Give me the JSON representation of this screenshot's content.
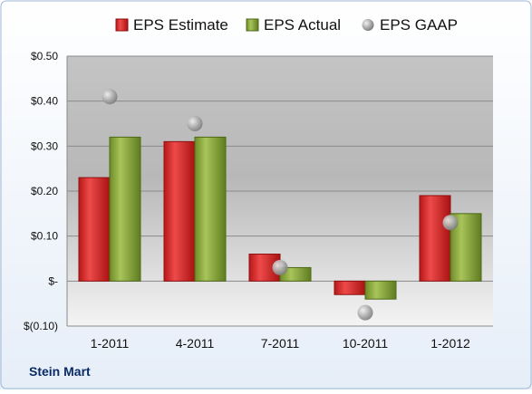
{
  "footer_label": "Stein Mart",
  "chart_data": {
    "type": "bar",
    "categories": [
      "1-2011",
      "4-2011",
      "7-2011",
      "10-2011",
      "1-2012"
    ],
    "series": [
      {
        "name": "EPS Estimate",
        "kind": "bar",
        "values": [
          0.23,
          0.31,
          0.06,
          -0.03,
          0.19
        ],
        "color": "#d42a2a"
      },
      {
        "name": "EPS Actual",
        "kind": "bar",
        "values": [
          0.32,
          0.32,
          0.03,
          -0.04,
          0.15
        ],
        "color": "#86a83a"
      },
      {
        "name": "EPS GAAP",
        "kind": "marker",
        "values": [
          0.41,
          0.35,
          0.03,
          -0.07,
          0.13
        ],
        "color": "#a0a0a0"
      }
    ],
    "ylim": [
      -0.1,
      0.5
    ],
    "yticks": [
      0.5,
      0.4,
      0.3,
      0.2,
      0.1,
      0.0,
      -0.1
    ],
    "ytick_labels": [
      "$0.50",
      "$0.40",
      "$0.30",
      "$0.20",
      "$0.10",
      "$-",
      "$(0.10)"
    ],
    "grid": true,
    "legend_position": "top"
  }
}
